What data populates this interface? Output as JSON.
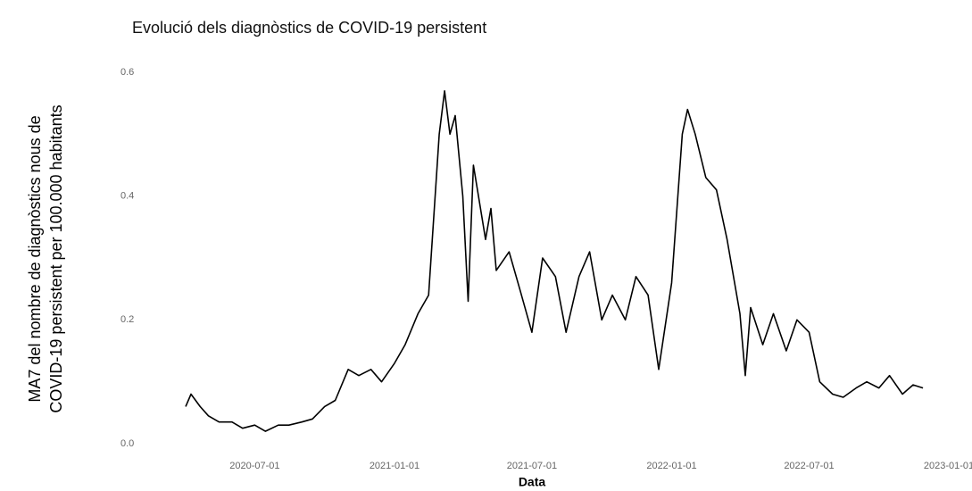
{
  "chart_data": {
    "type": "line",
    "title": "Evolució dels diagnòstics de COVID-19 persistent",
    "xlabel": "Data",
    "ylabel": [
      "MA7 del nombre de diagnòstics nous de",
      "COVID-19 persistent per 100.000 habitants"
    ],
    "x": [
      "2020-04-01",
      "2020-04-08",
      "2020-04-20",
      "2020-05-01",
      "2020-05-15",
      "2020-06-01",
      "2020-06-15",
      "2020-07-01",
      "2020-07-15",
      "2020-08-01",
      "2020-08-15",
      "2020-09-01",
      "2020-09-15",
      "2020-10-01",
      "2020-10-15",
      "2020-11-01",
      "2020-11-15",
      "2020-12-01",
      "2020-12-15",
      "2021-01-01",
      "2021-01-15",
      "2021-02-01",
      "2021-02-15",
      "2021-03-01",
      "2021-03-08",
      "2021-03-15",
      "2021-03-22",
      "2021-04-01",
      "2021-04-08",
      "2021-04-15",
      "2021-05-01",
      "2021-05-08",
      "2021-05-15",
      "2021-06-01",
      "2021-06-15",
      "2021-07-01",
      "2021-07-15",
      "2021-08-01",
      "2021-08-15",
      "2021-09-01",
      "2021-09-15",
      "2021-10-01",
      "2021-10-15",
      "2021-11-01",
      "2021-11-15",
      "2021-12-01",
      "2021-12-15",
      "2022-01-01",
      "2022-01-15",
      "2022-01-22",
      "2022-02-01",
      "2022-02-15",
      "2022-03-01",
      "2022-03-15",
      "2022-04-01",
      "2022-04-08",
      "2022-04-15",
      "2022-05-01",
      "2022-05-15",
      "2022-06-01",
      "2022-06-15",
      "2022-07-01",
      "2022-07-15",
      "2022-08-01",
      "2022-08-15",
      "2022-09-01",
      "2022-09-15",
      "2022-10-01",
      "2022-10-15",
      "2022-11-01",
      "2022-11-15",
      "2022-11-28"
    ],
    "series": [
      {
        "name": "MA7",
        "color": "#000000",
        "values": [
          0.06,
          0.08,
          0.06,
          0.045,
          0.035,
          0.035,
          0.025,
          0.03,
          0.02,
          0.03,
          0.03,
          0.035,
          0.04,
          0.06,
          0.07,
          0.12,
          0.11,
          0.12,
          0.1,
          0.13,
          0.16,
          0.21,
          0.24,
          0.5,
          0.57,
          0.5,
          0.53,
          0.4,
          0.23,
          0.45,
          0.33,
          0.38,
          0.28,
          0.31,
          0.25,
          0.18,
          0.3,
          0.27,
          0.18,
          0.27,
          0.31,
          0.2,
          0.24,
          0.2,
          0.27,
          0.24,
          0.12,
          0.26,
          0.5,
          0.54,
          0.5,
          0.43,
          0.41,
          0.33,
          0.21,
          0.11,
          0.22,
          0.16,
          0.21,
          0.15,
          0.2,
          0.18,
          0.1,
          0.08,
          0.075,
          0.09,
          0.1,
          0.09,
          0.11,
          0.08,
          0.095,
          0.09
        ]
      }
    ],
    "xlim": [
      "2020-04-01",
      "2023-01-01"
    ],
    "xticks": [
      "2020-07-01",
      "2021-01-01",
      "2021-07-01",
      "2022-01-01",
      "2022-07-01",
      "2023-01-01"
    ],
    "ylim": [
      0,
      0.6
    ],
    "yticks": [
      {
        "value": 0,
        "label": "0.0"
      },
      0.2,
      0.4,
      0.6
    ],
    "grid": false
  }
}
